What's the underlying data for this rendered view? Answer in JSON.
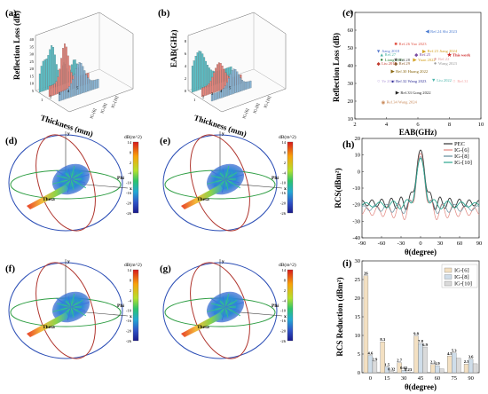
{
  "panels": {
    "a": {
      "label": "(a)",
      "ylabel": "Reflection Loss (dB)",
      "xlabel": "Thickness (mm)",
      "ticks_v": [
        "40",
        "35",
        "30",
        "25",
        "20",
        "15",
        "10",
        "5"
      ],
      "ticks_x": [
        "1",
        "2",
        "3",
        "4",
        "5"
      ],
      "series": [
        "IG-[6]",
        "IG-[8]",
        "IG-[10]"
      ]
    },
    "b": {
      "label": "(b)",
      "ylabel": "EAB(GHz)",
      "xlabel": "Thickness (mm)",
      "ticks_v": [
        "8",
        "6",
        "4",
        "2",
        "0"
      ],
      "ticks_x": [
        "1",
        "2",
        "3",
        "4",
        "5"
      ],
      "series": [
        "IG-[6]",
        "IG-[8]",
        "IG-[10]"
      ]
    },
    "c": {
      "label": "(c)"
    },
    "d": {
      "label": "(d)"
    },
    "e": {
      "label": "(e)"
    },
    "f": {
      "label": "(f)"
    },
    "g": {
      "label": "(g)"
    },
    "h": {
      "label": "(h)"
    },
    "i": {
      "label": "(i)"
    }
  },
  "pattern": {
    "colorbar_title": "dB(m^2)",
    "colorbar_ticks": [
      "14",
      "8",
      "2",
      "-4",
      "-10",
      "-16",
      "-20",
      "-26"
    ],
    "axis_x": "x",
    "axis_y": "y",
    "phi": "Phi",
    "theta": "Theta"
  },
  "chart_data": [
    {
      "panel": "c",
      "type": "scatter",
      "xlabel": "EAB(GHz)",
      "ylabel": "Reflection Loss (dB)",
      "xlim": [
        2,
        10
      ],
      "ylim": [
        10,
        70
      ],
      "xticks": [
        "2",
        "4",
        "6",
        "8",
        "10"
      ],
      "yticks": [
        "10",
        "20",
        "30",
        "40",
        "50",
        "60",
        "70"
      ],
      "points": [
        {
          "label": "Ref.24 Shi 2023",
          "x": 6.6,
          "y": 59.5,
          "color": "#4a7bd1",
          "marker": "◀"
        },
        {
          "label": "Ref.26 Yao 2023",
          "x": 4.6,
          "y": 52.5,
          "color": "#e2584a",
          "marker": "■"
        },
        {
          "label": "Jiang 2018",
          "x": 3.5,
          "y": 48.3,
          "color": "#5577cc",
          "marker": "▼"
        },
        {
          "label": "Ref.23 Jiang 2024",
          "x": 6.4,
          "y": 48.3,
          "color": "#d4a125",
          "marker": "▶"
        },
        {
          "label": "Ref.27",
          "x": 3.7,
          "y": 46.3,
          "color": "#4bb3a4",
          "marker": "▲"
        },
        {
          "label": "Ref.25",
          "x": 5.9,
          "y": 46.3,
          "color": "#7a4ca0",
          "marker": "◆"
        },
        {
          "label": "This work",
          "x": 8.0,
          "y": 46.1,
          "color": "#cc2222",
          "marker": "★"
        },
        {
          "label": "Liang 2019",
          "x": 3.7,
          "y": 43.5,
          "color": "#2e7d32",
          "marker": "●"
        },
        {
          "label": "Ref.28",
          "x": 4.6,
          "y": 43.5,
          "color": "#444444",
          "marker": "★"
        },
        {
          "label": "Yuan 2022",
          "x": 5.8,
          "y": 43.5,
          "color": "#d4a125",
          "marker": "▶"
        },
        {
          "label": "Ref.22",
          "x": 7.1,
          "y": 44.0,
          "color": "#e0a0a0",
          "marker": "●"
        },
        {
          "label": "Liu 2015",
          "x": 3.5,
          "y": 41.3,
          "color": "#c0392b",
          "marker": "◆"
        },
        {
          "label": "Ref.29",
          "x": 4.6,
          "y": 41.3,
          "color": "#8b5a2b",
          "marker": "◆"
        },
        {
          "label": "Wang 2023",
          "x": 7.1,
          "y": 41.5,
          "color": "#999999",
          "marker": "●"
        },
        {
          "label": "Ref.30 Huang 2022",
          "x": 4.4,
          "y": 37.0,
          "color": "#8b6914",
          "marker": "▶"
        },
        {
          "label": "Ye 2019",
          "x": 3.5,
          "y": 31.5,
          "color": "#b39ddb",
          "marker": "○"
        },
        {
          "label": "Ref.32 Wang 2023",
          "x": 4.4,
          "y": 31.3,
          "color": "#333399",
          "marker": "●"
        },
        {
          "label": "Liu 2022",
          "x": 7.0,
          "y": 32.0,
          "color": "#4db6ac",
          "marker": "▼"
        },
        {
          "label": "Ref.31",
          "x": 8.3,
          "y": 31.5,
          "color": "#f4a6a6",
          "marker": "○"
        },
        {
          "label": "Ref.33 Gong 2022",
          "x": 4.7,
          "y": 25.0,
          "color": "#222222",
          "marker": "▶"
        },
        {
          "label": "Ref.34 Wang 2024",
          "x": 3.8,
          "y": 19.6,
          "color": "#c98a5a",
          "marker": "◉"
        }
      ]
    },
    {
      "panel": "h",
      "type": "line",
      "xlabel": "θ(degree)",
      "ylabel": "RCS(dBm²)",
      "xlim": [
        -90,
        90
      ],
      "ylim": [
        -40,
        20
      ],
      "xticks": [
        "-90",
        "-60",
        "-30",
        "0",
        "30",
        "60",
        "90"
      ],
      "yticks": [
        "20",
        "10",
        "0",
        "-10",
        "-20",
        "-30",
        "-40"
      ],
      "series": [
        {
          "name": "PEC",
          "color": "#333333",
          "width": 0.9
        },
        {
          "name": "IG-[6]",
          "color": "#e2857e",
          "width": 0.7
        },
        {
          "name": "IG-[8]",
          "color": "#5f8a9a",
          "width": 0.7
        },
        {
          "name": "IG-[10]",
          "color": "#2aa58e",
          "width": 0.9
        }
      ]
    },
    {
      "panel": "i",
      "type": "bar",
      "xlabel": "θ(degree)",
      "ylabel": "RCS Reduction (dBm²)",
      "ylim": [
        0,
        30
      ],
      "categories": [
        "0",
        "15",
        "30",
        "45",
        "60",
        "75",
        "90"
      ],
      "yticks": [
        "0",
        "5",
        "10",
        "15",
        "20",
        "25",
        "30"
      ],
      "series": [
        {
          "name": "IG-[6]",
          "color": "#f3e0c2",
          "values": [
            26.0,
            8.3,
            2.7,
            9.8,
            2.2,
            4.5,
            2.3
          ],
          "labels": [
            "26",
            "8.3",
            "2.7",
            "9.8",
            "2.2",
            "4.5",
            "2.3"
          ]
        },
        {
          "name": "IG-[8]",
          "color": "#cfdde9",
          "values": [
            4.6,
            1.5,
            0.65,
            7.8,
            1.9,
            5.3,
            3.6
          ],
          "labels": [
            "4.6",
            "1.5",
            "0.65",
            "7.8",
            "1.9",
            "5.3",
            "3.6"
          ]
        },
        {
          "name": "IG-[10]",
          "color": "#dadada",
          "values": [
            2.9,
            0.32,
            0.23,
            6.9,
            1.0,
            3.9,
            2.4
          ],
          "labels": [
            "2.9",
            "0.32",
            "0.23",
            "6.9",
            "",
            "",
            ""
          ]
        }
      ]
    }
  ]
}
